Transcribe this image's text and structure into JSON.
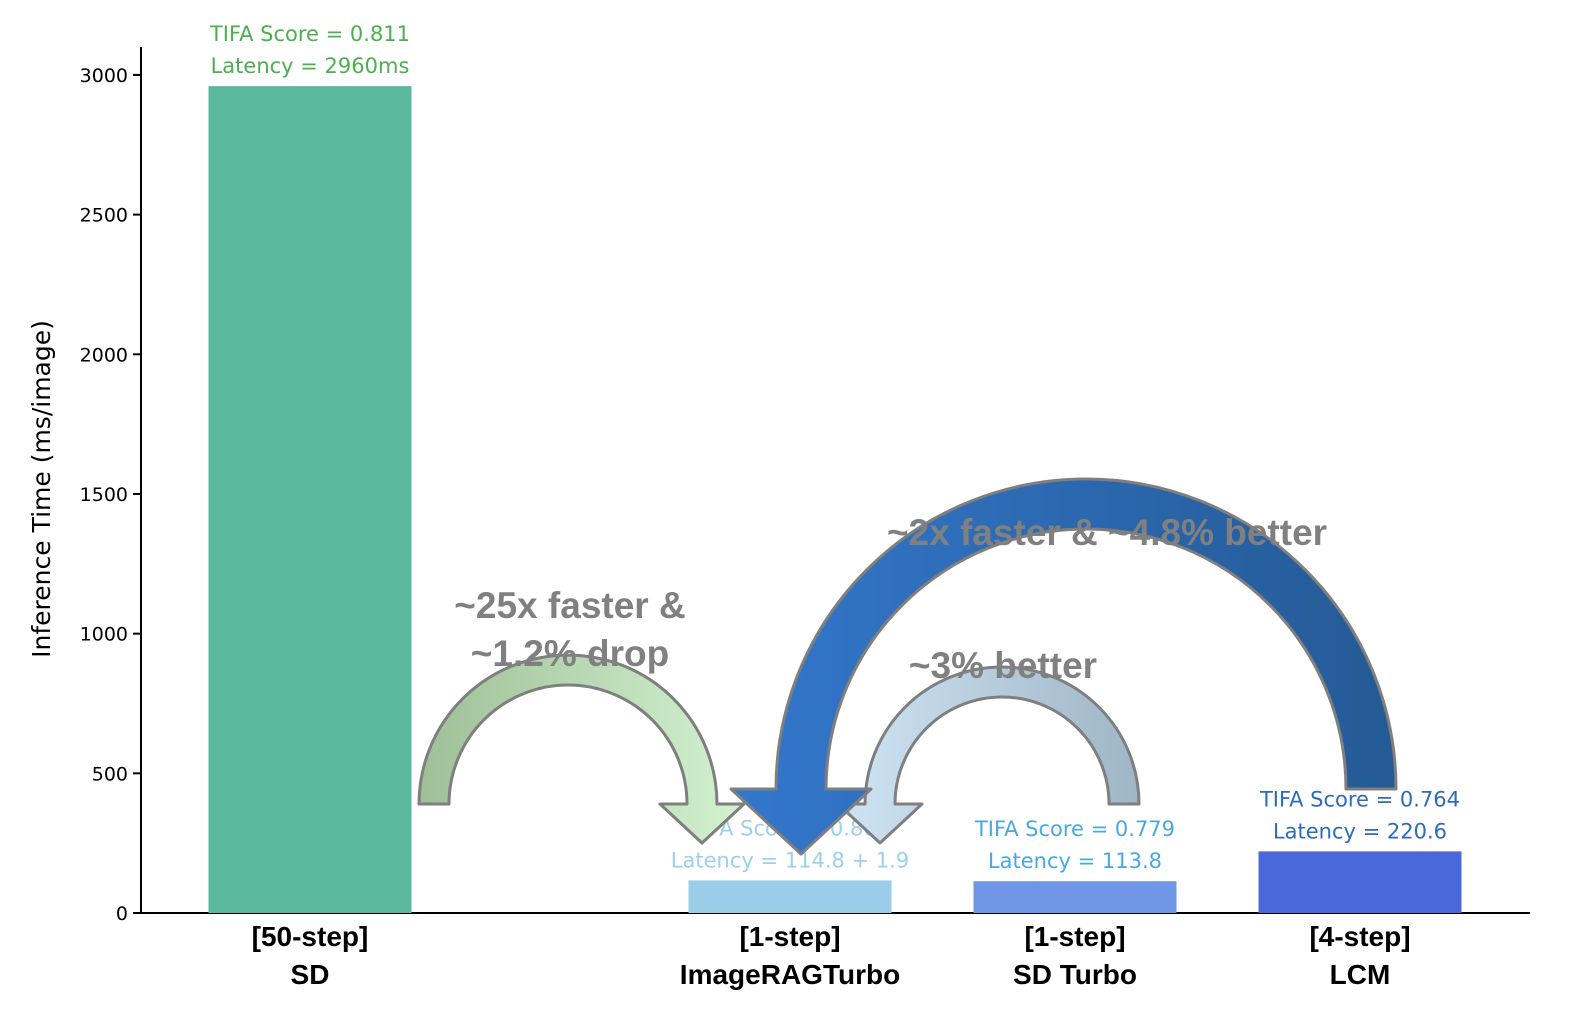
{
  "chart_data": {
    "type": "bar",
    "ylabel": "Inference Time (ms/image)",
    "xlabel": "",
    "ylim": [
      0,
      3100
    ],
    "yticks": [
      0,
      500,
      1000,
      1500,
      2000,
      2500,
      3000
    ],
    "grid": false,
    "categories": [
      [
        "[50-step]",
        "SD"
      ],
      [
        "[1-step]",
        "ImageRAGTurbo"
      ],
      [
        "[1-step]",
        "SD Turbo"
      ],
      [
        "[4-step]",
        "LCM"
      ]
    ],
    "values": [
      2960,
      116.7,
      113.8,
      220.6
    ],
    "bar_colors": [
      "#5ab99c",
      "#9bcde8",
      "#7096e6",
      "#4a68d9"
    ],
    "annotations": [
      {
        "line1": "TIFA Score = 0.811",
        "line2": "Latency = 2960ms",
        "color": "#4caf50"
      },
      {
        "line1": "TIFA Score = 0.801",
        "line2": "Latency = 114.8 + 1.9",
        "color": "#9dd0ee"
      },
      {
        "line1": "TIFA Score = 0.779",
        "line2": "Latency = 113.8",
        "color": "#4aa8e0"
      },
      {
        "line1": "TIFA Score = 0.764",
        "line2": "Latency = 220.6",
        "color": "#2c6cb8"
      }
    ],
    "comparisons": [
      {
        "from": 0,
        "to": 1,
        "line1": "~25x faster &",
        "line2": "~1.2% drop",
        "color_start": "#9ebf97",
        "color_end": "#d3f2d0"
      },
      {
        "from": 2,
        "to": 1,
        "line1": "~3% better",
        "line2": "",
        "color_start": "#9fb6c6",
        "color_end": "#cfe4f4"
      },
      {
        "from": 3,
        "to": 1,
        "line1": "~2x faster & ~4.8% better",
        "line2": "",
        "color_start": "#245a95",
        "color_end": "#3377cc"
      }
    ]
  }
}
